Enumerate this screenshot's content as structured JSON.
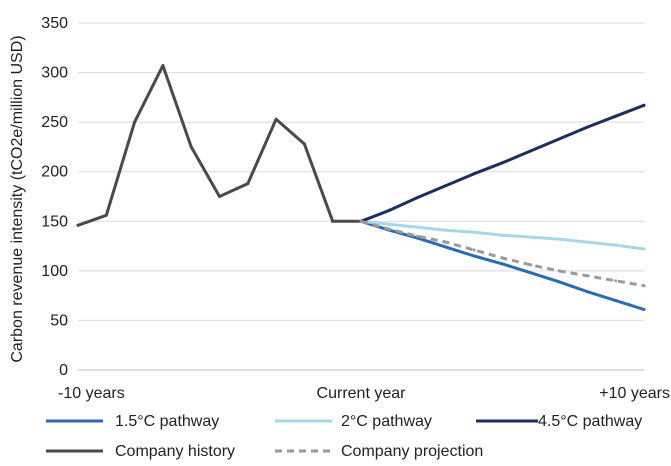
{
  "chart_data": {
    "type": "line",
    "title": "",
    "xlabel": "",
    "ylabel": "Carbon revenue intensity (tCO2e/million USD)",
    "ylim": [
      0,
      350
    ],
    "yticks": [
      0,
      50,
      100,
      150,
      200,
      250,
      300,
      350
    ],
    "xlim": [
      -10,
      10
    ],
    "xtick_labels": [
      {
        "x": -10,
        "label": "-10 years"
      },
      {
        "x": 0,
        "label": "Current year"
      },
      {
        "x": 10,
        "label": "+10 years"
      }
    ],
    "grid": "horizontal",
    "legend_position": "bottom",
    "series": [
      {
        "name": "1.5°C pathway",
        "color": "#2b6cb0",
        "dashed": false,
        "x": [
          0,
          1,
          2,
          3,
          4,
          5,
          6,
          7,
          8,
          9,
          10
        ],
        "y": [
          150,
          141,
          133,
          124,
          115,
          107,
          98,
          89,
          79,
          70,
          61
        ]
      },
      {
        "name": "2°C pathway",
        "color": "#a6d8ea",
        "dashed": false,
        "x": [
          0,
          1,
          2,
          3,
          4,
          5,
          6,
          7,
          8,
          9,
          10
        ],
        "y": [
          150,
          147,
          144,
          141,
          139,
          136,
          134,
          132,
          129,
          126,
          122
        ]
      },
      {
        "name": "4.5°C pathway",
        "color": "#1c2d5e",
        "dashed": false,
        "x": [
          0,
          1,
          2,
          3,
          4,
          5,
          6,
          7,
          8,
          9,
          10
        ],
        "y": [
          150,
          161,
          174,
          186,
          198,
          209,
          221,
          233,
          245,
          256,
          267
        ]
      },
      {
        "name": "Company history",
        "color": "#4a4a4a",
        "dashed": false,
        "x": [
          -10,
          -9,
          -8,
          -7,
          -6,
          -5,
          -4,
          -3,
          -2,
          -1,
          0
        ],
        "y": [
          146,
          156,
          250,
          307,
          225,
          175,
          188,
          253,
          228,
          150,
          150
        ]
      },
      {
        "name": "Company projection",
        "color": "#9a9a9a",
        "dashed": true,
        "x": [
          0,
          1,
          2,
          3,
          4,
          5,
          6,
          7,
          8,
          9,
          10
        ],
        "y": [
          150,
          142,
          135,
          129,
          121,
          113,
          106,
          100,
          95,
          90,
          85
        ]
      }
    ]
  }
}
